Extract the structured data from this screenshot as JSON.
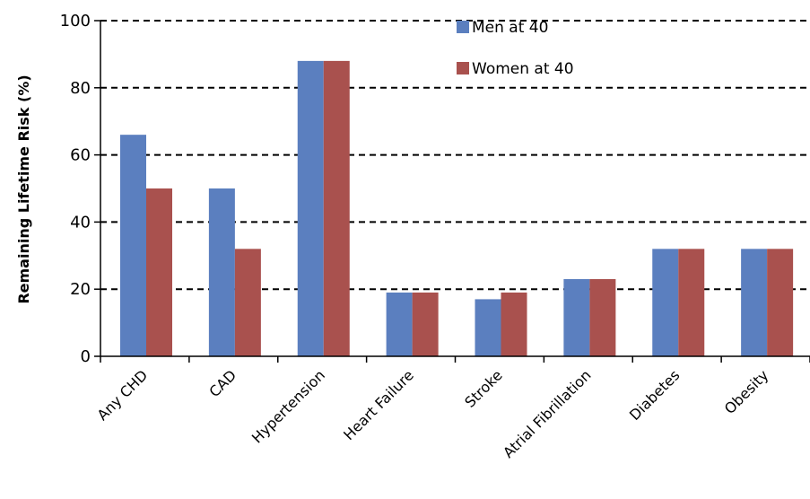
{
  "chart_data": {
    "type": "bar",
    "title": "",
    "xlabel": "",
    "ylabel": "Remaining Lifetime Risk (%)",
    "ylim": [
      0,
      100
    ],
    "yticks": [
      0,
      20,
      40,
      60,
      80,
      100
    ],
    "grid": "horizontal-dashed",
    "legend_position": "top-center",
    "categories": [
      "Any CHD",
      "CAD",
      "Hypertension",
      "Heart Failure",
      "Stroke",
      "Atrial Fibrillation",
      "Diabetes",
      "Obesity"
    ],
    "series": [
      {
        "name": "Men at 40",
        "color": "#5b7fbf",
        "values": [
          66,
          50,
          88,
          19,
          17,
          23,
          32,
          32
        ]
      },
      {
        "name": "Women at 40",
        "color": "#a9514e",
        "values": [
          50,
          32,
          88,
          19,
          19,
          23,
          32,
          32
        ]
      }
    ]
  }
}
